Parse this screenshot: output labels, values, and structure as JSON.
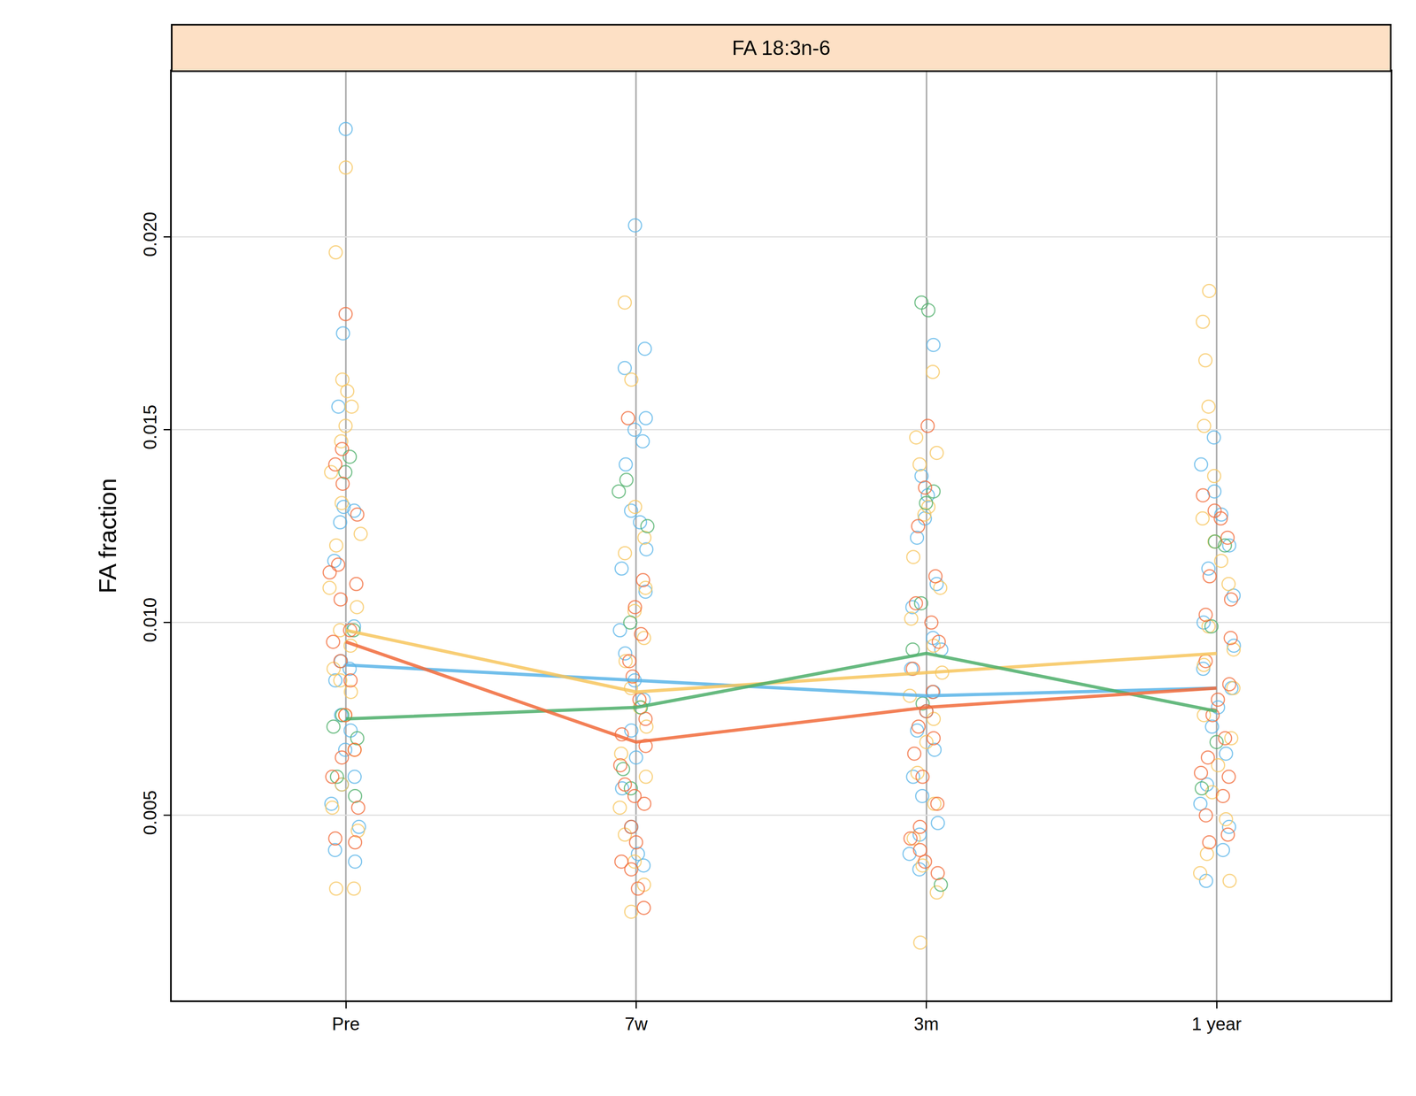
{
  "chart_data": {
    "type": "scatter",
    "title": "FA 18:3n-6",
    "y_label": "FA fraction",
    "categories": [
      "Pre",
      "7w",
      "3m",
      "1 year"
    ],
    "marker": "circle-open",
    "grid": true,
    "ylim": [
      0.0002,
      0.0243
    ],
    "yticks": [
      {
        "value": 0.005,
        "label": "0.005"
      },
      {
        "value": 0.01,
        "label": "0.010"
      },
      {
        "value": 0.015,
        "label": "0.015"
      },
      {
        "value": 0.02,
        "label": "0.020"
      }
    ],
    "series": [
      {
        "color": "#5ab4e8",
        "means": [
          0.0089,
          0.0085,
          0.0081,
          0.0083
        ],
        "values": [
          [
            0.0228,
            0.0175,
            0.0156,
            0.0129,
            0.0126,
            0.0116,
            0.0099,
            0.009,
            0.0088,
            0.0076,
            0.0072,
            0.0067,
            0.006,
            0.0058,
            0.0053,
            0.0047,
            0.0041,
            0.0038,
            0.013,
            0.0085
          ],
          [
            0.0203,
            0.0171,
            0.0166,
            0.0153,
            0.015,
            0.0147,
            0.0141,
            0.0129,
            0.0126,
            0.0119,
            0.0114,
            0.0108,
            0.0098,
            0.0092,
            0.0085,
            0.008,
            0.0072,
            0.0065,
            0.0057,
            0.0047,
            0.004,
            0.0037
          ],
          [
            0.0172,
            0.0138,
            0.0133,
            0.0127,
            0.0122,
            0.011,
            0.0104,
            0.0096,
            0.0093,
            0.0088,
            0.0082,
            0.0077,
            0.0072,
            0.0067,
            0.006,
            0.0055,
            0.0048,
            0.0045,
            0.004,
            0.0036
          ],
          [
            0.0148,
            0.0141,
            0.0134,
            0.0128,
            0.012,
            0.0114,
            0.0107,
            0.01,
            0.0094,
            0.0088,
            0.0083,
            0.0078,
            0.0073,
            0.0066,
            0.0058,
            0.0053,
            0.0047,
            0.0041,
            0.0033
          ]
        ]
      },
      {
        "color": "#f7c65e",
        "means": [
          0.0098,
          0.0082,
          0.0087,
          0.0092
        ],
        "values": [
          [
            0.0218,
            0.0196,
            0.0163,
            0.016,
            0.0156,
            0.0151,
            0.0147,
            0.0139,
            0.0131,
            0.0123,
            0.0109,
            0.0104,
            0.0098,
            0.0094,
            0.0088,
            0.0082,
            0.0076,
            0.0067,
            0.0058,
            0.0052,
            0.0046,
            0.0031,
            0.0031,
            0.012,
            0.0085
          ],
          [
            0.0183,
            0.0163,
            0.013,
            0.0122,
            0.0118,
            0.0109,
            0.0103,
            0.0096,
            0.009,
            0.0083,
            0.0078,
            0.0073,
            0.0066,
            0.006,
            0.0052,
            0.0045,
            0.0038,
            0.0032,
            0.0025
          ],
          [
            0.0165,
            0.0148,
            0.0144,
            0.0141,
            0.013,
            0.0128,
            0.0117,
            0.0109,
            0.0101,
            0.0094,
            0.0087,
            0.0081,
            0.0075,
            0.0069,
            0.0061,
            0.0053,
            0.0044,
            0.0037,
            0.003,
            0.0017
          ],
          [
            0.0186,
            0.0178,
            0.0168,
            0.0156,
            0.0151,
            0.0138,
            0.0127,
            0.0121,
            0.0116,
            0.011,
            0.0099,
            0.0093,
            0.0089,
            0.0083,
            0.0076,
            0.007,
            0.0063,
            0.0056,
            0.0049,
            0.004,
            0.0035,
            0.0033
          ]
        ]
      },
      {
        "color": "#4daf6a",
        "means": [
          0.0075,
          0.0078,
          0.0092,
          0.0077
        ],
        "values": [
          [
            0.0143,
            0.0139,
            0.0098,
            0.0076,
            0.0073,
            0.007,
            0.006,
            0.0055
          ],
          [
            0.0137,
            0.0134,
            0.0125,
            0.01,
            0.0078,
            0.0062,
            0.0057
          ],
          [
            0.0183,
            0.0181,
            0.0134,
            0.0131,
            0.0105,
            0.0093,
            0.0079,
            0.0032
          ],
          [
            0.0121,
            0.012,
            0.0099,
            0.0069,
            0.0057
          ]
        ]
      },
      {
        "color": "#f26b3a",
        "means": [
          0.0095,
          0.0069,
          0.0078,
          0.0083
        ],
        "values": [
          [
            0.018,
            0.0145,
            0.0141,
            0.0136,
            0.0128,
            0.0115,
            0.0113,
            0.011,
            0.0106,
            0.0098,
            0.0095,
            0.009,
            0.0085,
            0.0076,
            0.0067,
            0.0065,
            0.006,
            0.0052,
            0.0044,
            0.0043
          ],
          [
            0.0153,
            0.0111,
            0.0104,
            0.0097,
            0.009,
            0.0086,
            0.008,
            0.0075,
            0.0071,
            0.0068,
            0.0063,
            0.0058,
            0.0055,
            0.0053,
            0.0047,
            0.0043,
            0.0038,
            0.0036,
            0.0031,
            0.0026
          ],
          [
            0.0151,
            0.0135,
            0.0125,
            0.0112,
            0.0105,
            0.01,
            0.0095,
            0.0088,
            0.0082,
            0.0077,
            0.0073,
            0.007,
            0.0066,
            0.006,
            0.0053,
            0.0047,
            0.0044,
            0.0041,
            0.0038,
            0.0035
          ],
          [
            0.0133,
            0.0129,
            0.0127,
            0.0122,
            0.0112,
            0.0106,
            0.0102,
            0.0096,
            0.009,
            0.0084,
            0.008,
            0.0076,
            0.007,
            0.0065,
            0.0061,
            0.006,
            0.0055,
            0.005,
            0.0045,
            0.0043
          ]
        ]
      }
    ]
  }
}
